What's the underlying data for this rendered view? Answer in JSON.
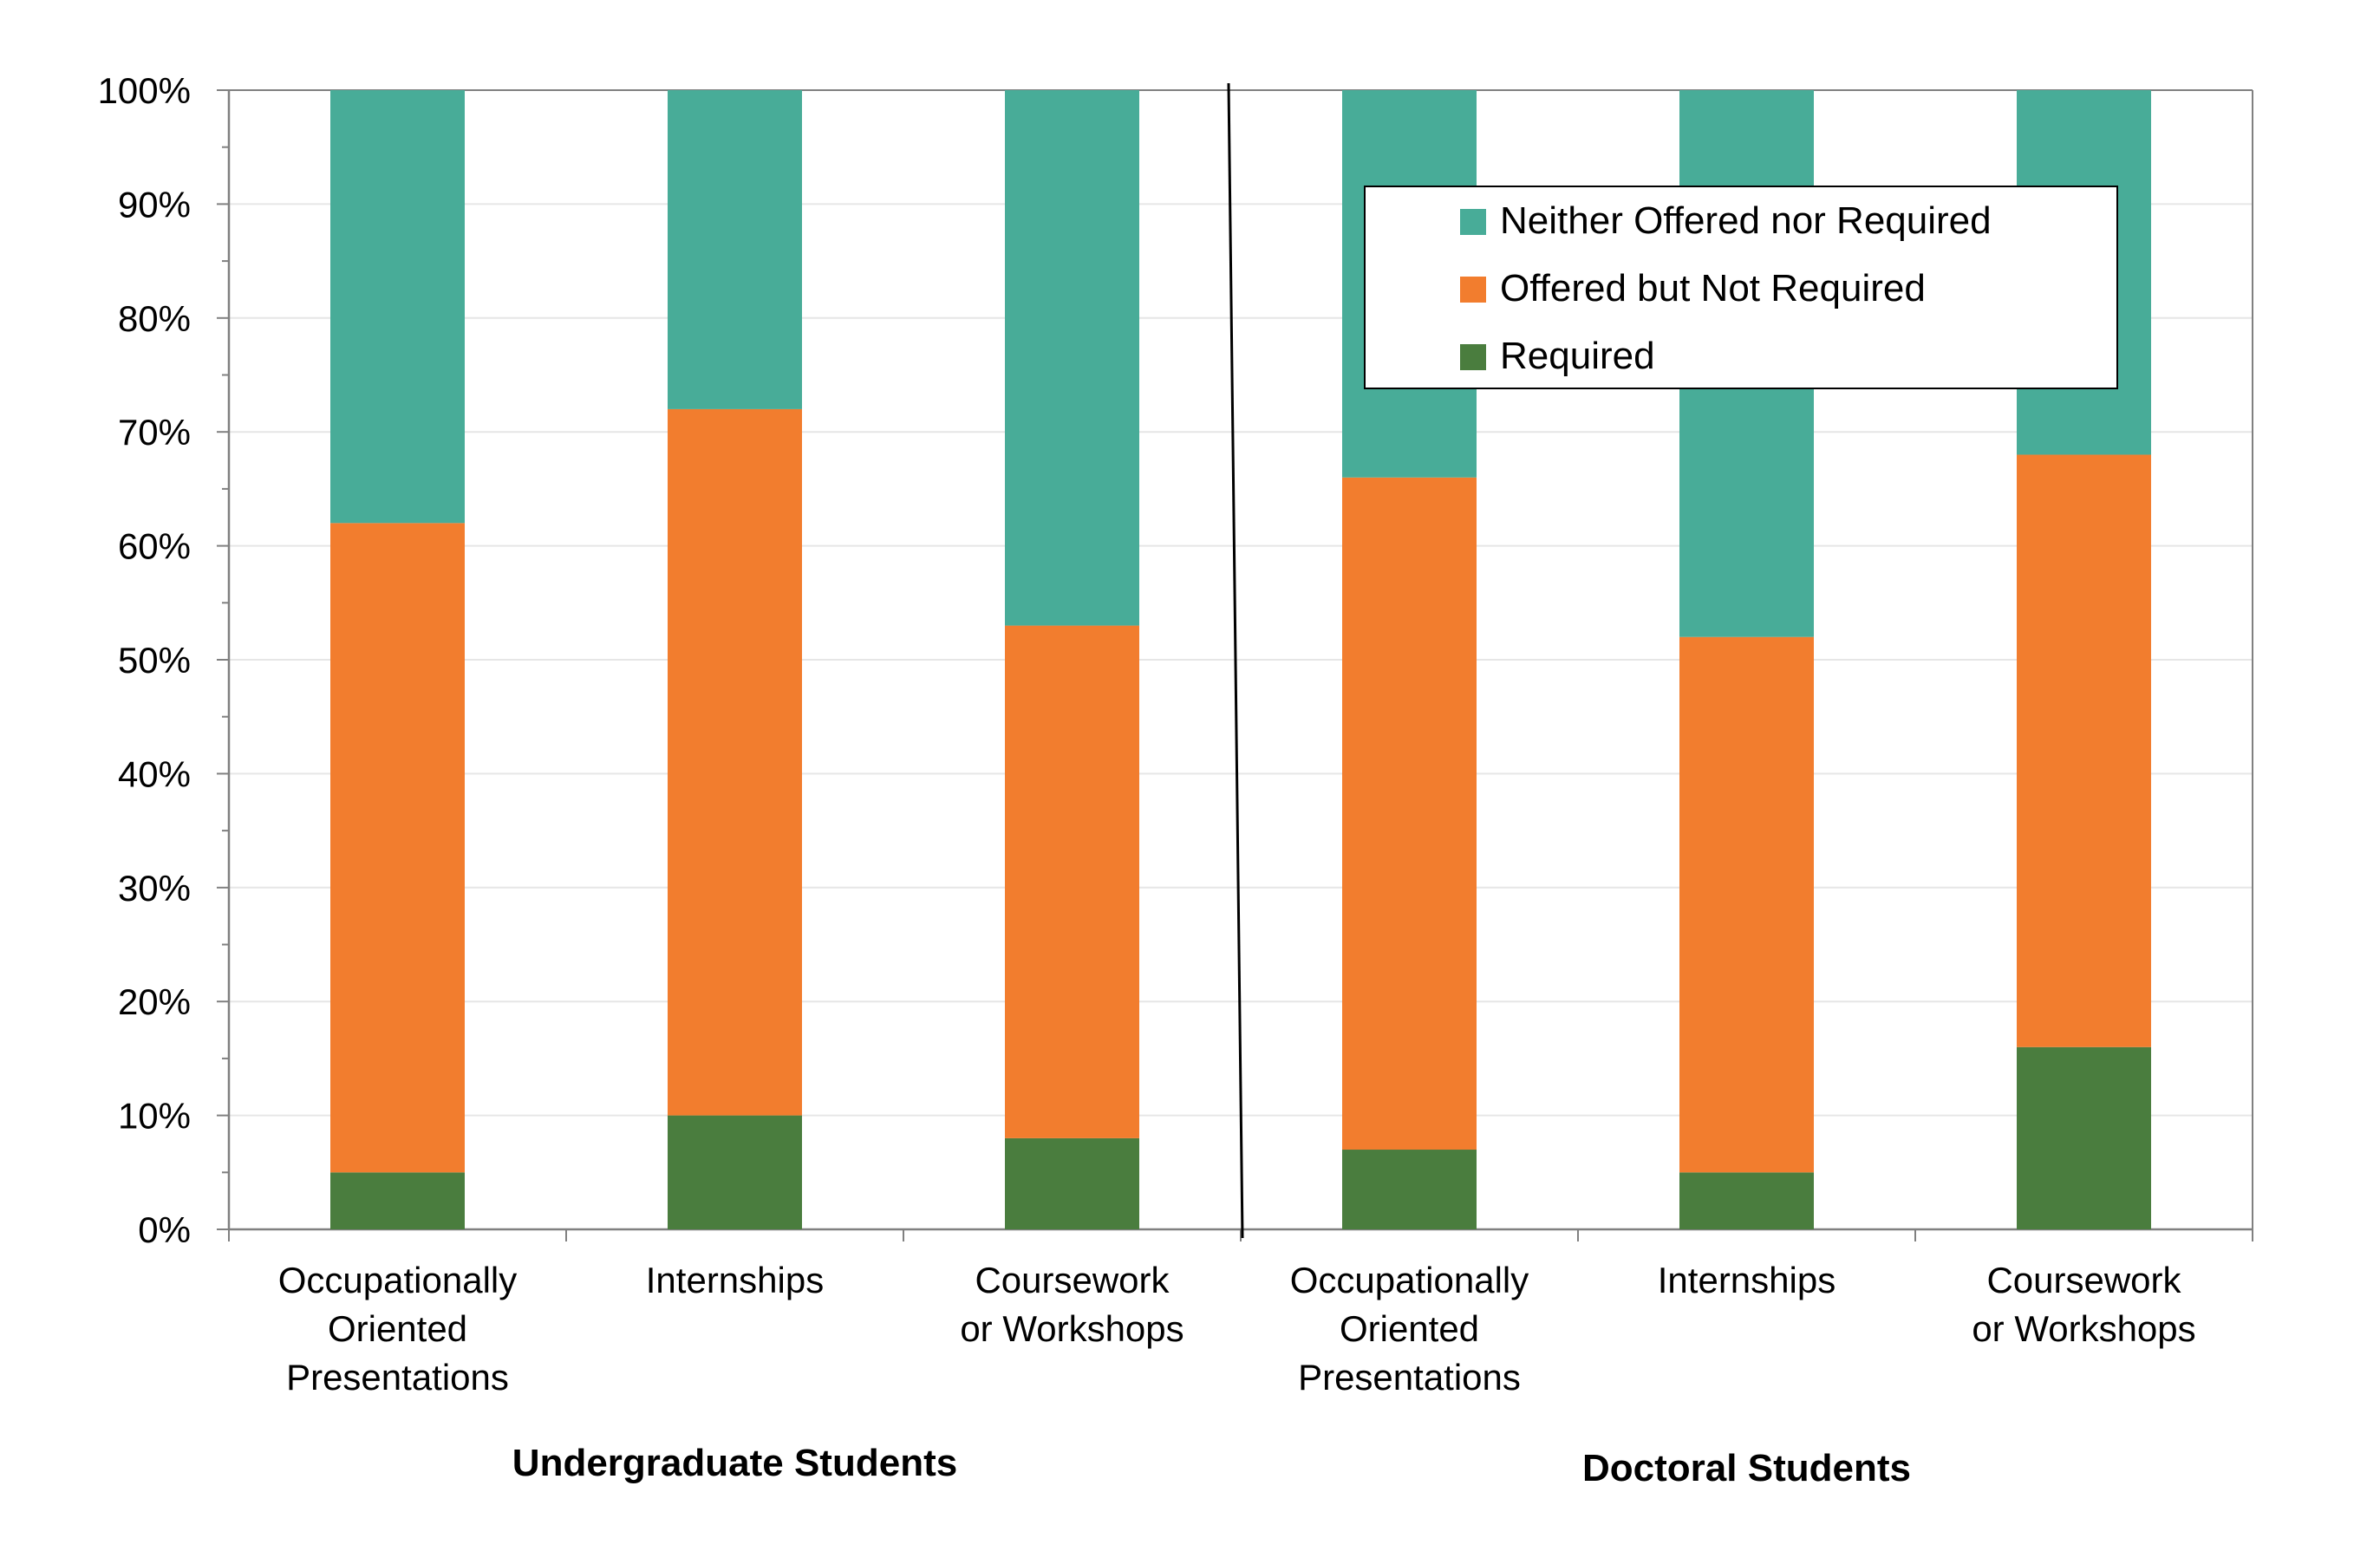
{
  "chart_data": {
    "type": "bar",
    "stacked": true,
    "percent_axis": true,
    "title": "",
    "xlabel": "",
    "ylabel": "",
    "ylim": [
      0,
      100
    ],
    "y_ticks": [
      "0%",
      "10%",
      "20%",
      "30%",
      "40%",
      "50%",
      "60%",
      "70%",
      "80%",
      "90%",
      "100%"
    ],
    "grid": true,
    "legend_position": "top-right",
    "categories": [
      [
        "Occupationally",
        "Oriented",
        "Presentations"
      ],
      [
        "Internships"
      ],
      [
        "Coursework",
        "or Workshops"
      ],
      [
        "Occupationally",
        "Oriented",
        "Presentations"
      ],
      [
        "Internships"
      ],
      [
        "Coursework",
        "or Workshops"
      ]
    ],
    "groups": [
      {
        "label": "Undergraduate Students",
        "categories": [
          0,
          1,
          2
        ]
      },
      {
        "label": "Doctoral Students",
        "categories": [
          3,
          4,
          5
        ]
      }
    ],
    "series": [
      {
        "name": "Required",
        "color": "#4a7d3e",
        "values": [
          5,
          10,
          8,
          7,
          5,
          16
        ]
      },
      {
        "name": "Offered but Not Required",
        "color": "#f27d2e",
        "values": [
          57,
          62,
          45,
          59,
          47,
          52
        ]
      },
      {
        "name": "Neither Offered nor Required",
        "color": "#48ac98",
        "values": [
          38,
          28,
          47,
          34,
          48,
          32
        ]
      }
    ],
    "legend_order": [
      "Neither Offered nor Required",
      "Offered but Not Required",
      "Required"
    ]
  },
  "colors": {
    "axis": "#808080",
    "grid": "#e6e6e6",
    "divider": "#000000"
  }
}
